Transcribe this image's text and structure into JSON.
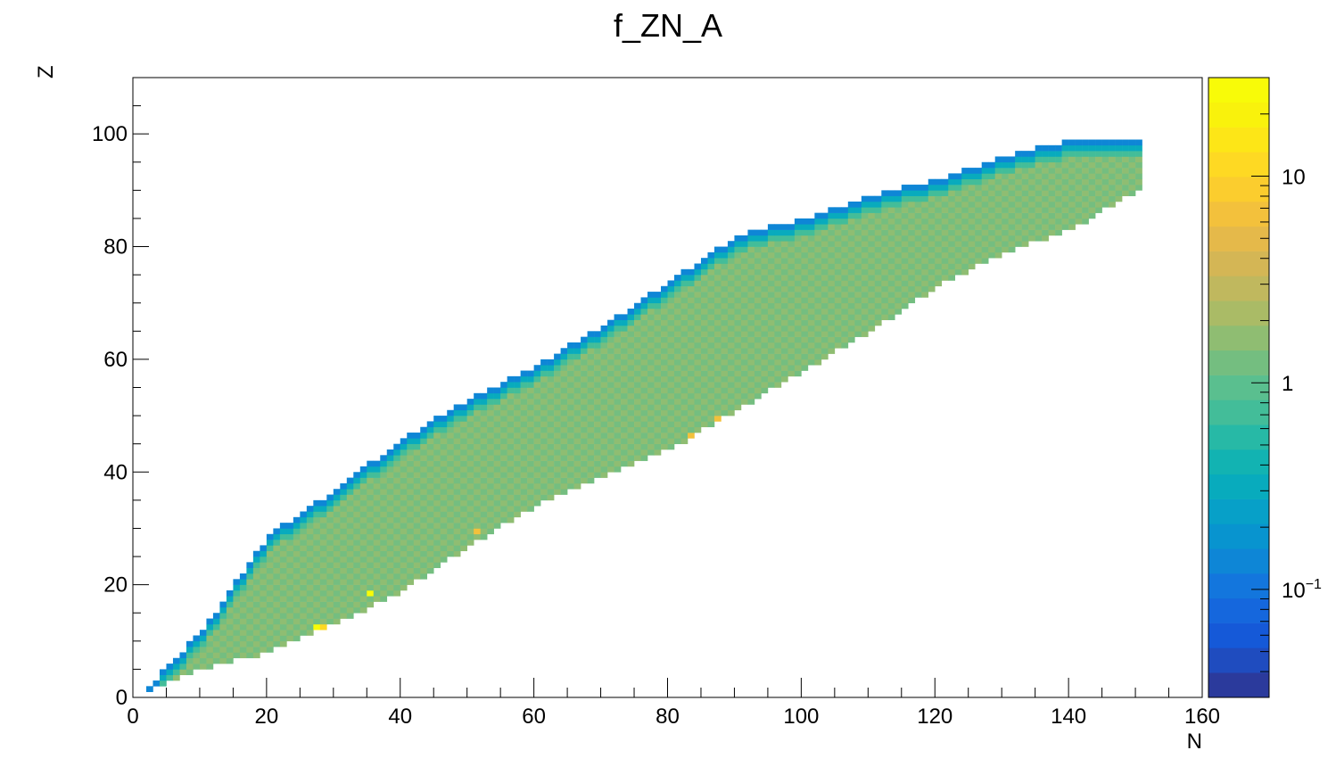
{
  "chart_data": {
    "type": "heatmap",
    "title": "f_ZN_A",
    "xlabel": "N",
    "ylabel": "Z",
    "xlim": [
      0,
      160
    ],
    "ylim": [
      0,
      110
    ],
    "x_ticks": [
      "0",
      "20",
      "40",
      "60",
      "80",
      "100",
      "120",
      "140",
      "160"
    ],
    "y_ticks": [
      "0",
      "20",
      "40",
      "60",
      "80",
      "100"
    ],
    "z_scale": "log",
    "z_range": [
      0.03,
      30
    ],
    "z_ticks": [
      {
        "label": "10",
        "value": 10
      },
      {
        "label": "1",
        "value": 1
      },
      {
        "label": "10",
        "sup": "−1",
        "value": 0.1
      }
    ],
    "palette": [
      "#2b3a9c",
      "#1f4cbf",
      "#1559d8",
      "#1567dd",
      "#1376dd",
      "#0e86d6",
      "#0894cf",
      "#07a0c8",
      "#08abbd",
      "#12b3b2",
      "#27b9a6",
      "#43bd99",
      "#5abf8f",
      "#74be80",
      "#8fbd72",
      "#aabb66",
      "#c0b85e",
      "#d4b655",
      "#e5b94a",
      "#f3c13c",
      "#fbcd2e",
      "#fed923",
      "#fde617",
      "#f9f20c",
      "#f8fb08"
    ],
    "ridge": [
      {
        "n": 2,
        "zmin": 1,
        "zmax": 1
      },
      {
        "n": 10,
        "zmin": 5,
        "zmax": 11
      },
      {
        "n": 20,
        "zmin": 8,
        "zmax": 28
      },
      {
        "n": 30,
        "zmin": 13,
        "zmax": 36
      },
      {
        "n": 40,
        "zmin": 19,
        "zmax": 45
      },
      {
        "n": 50,
        "zmin": 27,
        "zmax": 52
      },
      {
        "n": 60,
        "zmin": 34,
        "zmax": 58
      },
      {
        "n": 70,
        "zmin": 39,
        "zmax": 65
      },
      {
        "n": 80,
        "zmin": 44,
        "zmax": 73
      },
      {
        "n": 90,
        "zmin": 51,
        "zmax": 81
      },
      {
        "n": 100,
        "zmin": 58,
        "zmax": 84
      },
      {
        "n": 110,
        "zmin": 65,
        "zmax": 88
      },
      {
        "n": 120,
        "zmin": 73,
        "zmax": 91
      },
      {
        "n": 130,
        "zmin": 79,
        "zmax": 95
      },
      {
        "n": 140,
        "zmin": 83,
        "zmax": 98
      },
      {
        "n": 150,
        "zmin": 90,
        "zmax": 98
      }
    ],
    "typical_value": 1.5,
    "hot_spots": [
      {
        "n": 27,
        "z": 12,
        "value": 25
      },
      {
        "n": 35,
        "z": 18,
        "value": 25
      },
      {
        "n": 28,
        "z": 12,
        "value": 10
      },
      {
        "n": 51,
        "z": 29,
        "value": 6
      },
      {
        "n": 83,
        "z": 46,
        "value": 6
      },
      {
        "n": 87,
        "z": 49,
        "value": 6
      }
    ]
  }
}
